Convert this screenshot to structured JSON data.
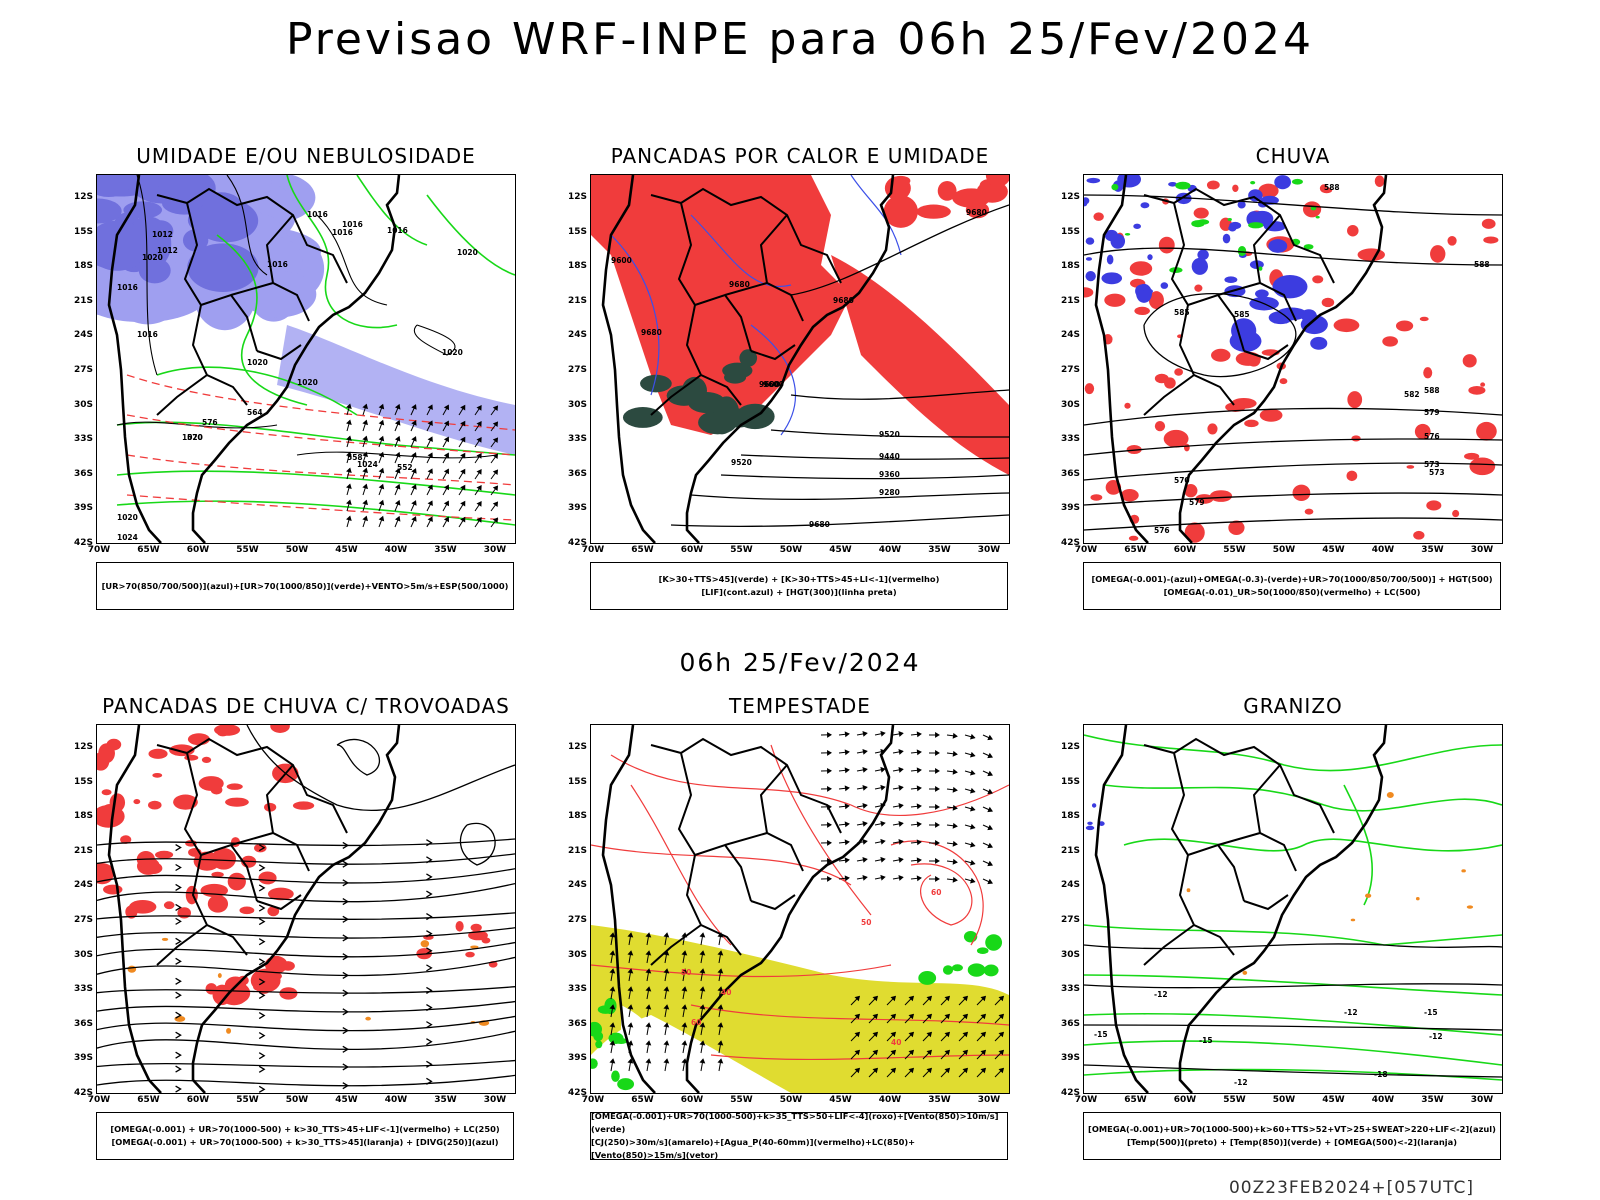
{
  "title": "Previsao WRF-INPE  para 06h 25/Fev/2024",
  "subtitle": "06h 25/Fev/2024",
  "footer": "00Z23FEB2024+[057UTC]",
  "axes": {
    "lat_labels": [
      "12S",
      "15S",
      "18S",
      "21S",
      "24S",
      "27S",
      "30S",
      "33S",
      "36S",
      "39S",
      "42S"
    ],
    "lon_labels": [
      "70W",
      "65W",
      "60W",
      "55W",
      "50W",
      "45W",
      "40W",
      "35W",
      "30W"
    ]
  },
  "colors": {
    "light_blue": "#9f9ff0",
    "mid_blue": "#7070dd",
    "deep_blue": "#3c3ce0",
    "green": "#18d818",
    "red": "#f03c3c",
    "dark_teal": "#2c4a40",
    "yellow": "#e0dc30",
    "orange": "#f08a20",
    "blue_line": "#3c50e8"
  },
  "panels": [
    {
      "id": "umidade",
      "title": "UMIDADE E/OU NEBULOSIDADE",
      "legend": [
        "[UR>70(850/700/500)](azul)+[UR>70(1000/850)](verde)+VENTO>5m/s+ESP(500/1000)"
      ],
      "contour_labels": [
        "1016",
        "1012",
        "1016",
        "1020",
        "1016",
        "1016",
        "1016",
        "1020",
        "1020",
        "1016",
        "1020",
        "1020",
        "1024",
        "1020",
        "1020",
        "1024",
        "1016",
        "1012",
        "576",
        "570",
        "564",
        "558",
        "552"
      ]
    },
    {
      "id": "pancadas-calor",
      "title": "PANCADAS POR CALOR E UMIDADE",
      "legend": [
        "[K>30+TTS>45](verde) + [K>30+TTS>45+LI<-1](vermelho)",
        "[LIF](cont.azul) + [HGT(300)](linha preta)"
      ],
      "contour_labels": [
        "9680",
        "9600",
        "9680",
        "9680",
        "9680",
        "9600",
        "9520",
        "9440",
        "9360",
        "9280",
        "9680",
        "9600",
        "9520"
      ]
    },
    {
      "id": "chuva",
      "title": "CHUVA",
      "legend": [
        "[OMEGA(-0.001)-(azul)+OMEGA(-0.3)-(verde)+UR>70(1000/850/700/500)] + HGT(500)",
        "[OMEGA(-0.01)_UR>50(1000/850)(vermelho) + LC(500)"
      ],
      "contour_labels": [
        "588",
        "588",
        "585",
        "582",
        "579",
        "576",
        "573",
        "570",
        "579",
        "576",
        "573",
        "588",
        "585"
      ]
    },
    {
      "id": "pancadas-trovoadas",
      "title": "PANCADAS DE CHUVA C/ TROVOADAS",
      "legend": [
        "[OMEGA(-0.001) + UR>70(1000-500) + k>30_TTS>45+LIF<-1](vermelho) + LC(250)",
        "[OMEGA(-0.001) + UR>70(1000-500) + k>30_TTS>45](laranja) + [DIVG(250)](azul)"
      ],
      "contour_labels": []
    },
    {
      "id": "tempestade",
      "title": "TEMPESTADE",
      "legend": [
        "[OMEGA(-0.001)+UR>70(1000-500)+k>35_TTS>50+LIF<-4](roxo)+[Vento(850)>10m/s](verde)",
        "[CJ(250)>30m/s](amarelo)+[Agua_P(40-60mm)](vermelho)+LC(850)+[Vento(850)>15m/s](vetor)"
      ],
      "contour_labels": [
        "60",
        "50",
        "50",
        "40",
        "40",
        "60"
      ]
    },
    {
      "id": "granizo",
      "title": "GRANIZO",
      "legend": [
        "[OMEGA(-0.001)+UR>70(1000-500)+k>60+TTS>52+VT>25+SWEAT>220+LIF<-2](azul)",
        "[Temp(500)](preto) + [Temp(850)](verde) + [OMEGA(500)<-2](laranja)"
      ],
      "contour_labels": [
        "-12",
        "-15",
        "-12",
        "-15",
        "-12",
        "-18",
        "-15",
        "-12"
      ]
    }
  ]
}
